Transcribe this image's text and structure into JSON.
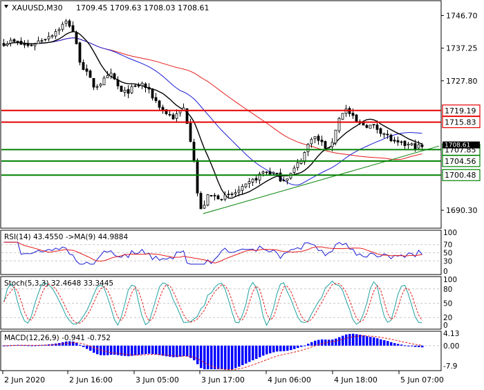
{
  "chart_data": {
    "type": "candlestick",
    "main": {
      "symbol_label": "XAUUSD,M30",
      "ohlc_label": "1709.45 1709.63 1708.03 1708.61",
      "ylim": [
        1685.3,
        1750.8
      ],
      "y_ticks": [
        "1746.70",
        "1737.25",
        "1727.80",
        "1690.30"
      ],
      "price_levels": [
        {
          "value": 1719.19,
          "label": "1719.19",
          "color": "#e60000"
        },
        {
          "value": 1715.83,
          "label": "1715.83",
          "color": "#e60000"
        },
        {
          "value": 1707.85,
          "label": "1707.85",
          "color": "#008000"
        },
        {
          "value": 1704.56,
          "label": "1704.56",
          "color": "#008000"
        },
        {
          "value": 1700.48,
          "label": "1700.48",
          "color": "#008000"
        }
      ],
      "current_price_label": "1708.61",
      "trendline": {
        "from": [
          0.45,
          1689.3
        ],
        "to": [
          1.0,
          1707.9
        ],
        "color": "#008000"
      }
    },
    "rsi": {
      "label": "RSI(14) 43.4550 ->MA(9) 44.9884",
      "y_ticks": [
        "100",
        "70",
        "50",
        "30",
        "0"
      ]
    },
    "stoch": {
      "label": "Stoch(5,3,3) 32.4648 33.3445",
      "y_ticks": [
        "100",
        "80",
        "50",
        "20",
        "0"
      ]
    },
    "macd": {
      "label": "MACD(12,26,9) -0.941 -0.752",
      "y_ticks": [
        "4.13",
        "0.00",
        "-7.9"
      ]
    },
    "x_ticks": [
      "2 Jun 2020",
      "2 Jun 16:00",
      "3 Jun 05:00",
      "3 Jun 17:00",
      "4 Jun 06:00",
      "4 Jun 18:00",
      "5 Jun 07:00"
    ],
    "colors": {
      "ma_fast": "#000000",
      "ma_mid": "#1a1ad6",
      "ma_slow": "#e61a1a",
      "macd_bar": "#0000ff",
      "grid": "#c8c8c8"
    }
  }
}
